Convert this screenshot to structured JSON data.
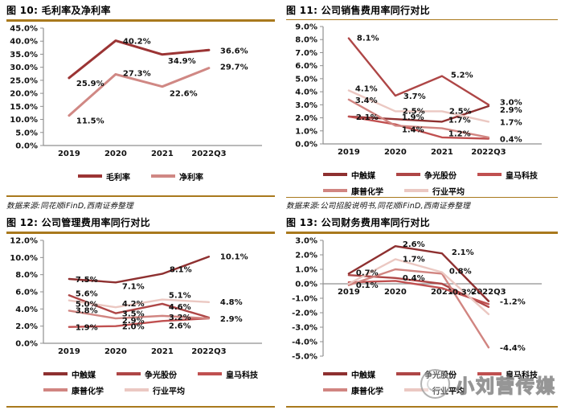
{
  "page": {
    "accent_color": "#A9791D",
    "background": "#ffffff",
    "text_color": "#000000"
  },
  "watermark": {
    "text": "小刘营传媒",
    "icon": "wechat-logo-sketch"
  },
  "figures": [
    {
      "title": "图 10: 毛利率及净利率",
      "source": "数据来源:同花顺iFinD,西南证券整理"
    },
    {
      "title": "图 11: 公司销售费用率同行对比",
      "source": "数据来源:公司招股说明书,同花顺iFinD,西南证券整理"
    },
    {
      "title": "图 12: 公司管理费用率同行对比",
      "source": ""
    },
    {
      "title": "图 13: 公司财务费用率同行对比",
      "source": ""
    }
  ],
  "chart_data": [
    {
      "id": "fig10",
      "type": "line",
      "title": "毛利率及净利率",
      "categories": [
        "2019",
        "2020",
        "2021",
        "2022Q3"
      ],
      "ylim": [
        0,
        45
      ],
      "yticks": [
        0,
        5,
        10,
        15,
        20,
        25,
        30,
        35,
        40,
        45
      ],
      "grid": false,
      "legend_position": "bottom-center",
      "series": [
        {
          "name": "毛利率",
          "color": "#9B3434",
          "width": 3,
          "values": [
            25.9,
            40.2,
            34.9,
            36.6
          ],
          "labels": [
            {
              "t": "25.9%",
              "dx": 9,
              "dy": 10
            },
            {
              "t": "40.2%",
              "dx": 9,
              "dy": 4
            },
            {
              "t": "34.9%",
              "dx": 7,
              "dy": 11
            },
            {
              "t": "36.6%",
              "dx": 14,
              "dy": 4
            }
          ]
        },
        {
          "name": "净利率",
          "color": "#D08884",
          "width": 3,
          "values": [
            11.5,
            27.3,
            22.6,
            29.7
          ],
          "labels": [
            {
              "t": "11.5%",
              "dx": 9,
              "dy": 10
            },
            {
              "t": "27.3%",
              "dx": 9,
              "dy": 2
            },
            {
              "t": "22.6%",
              "dx": 9,
              "dy": 12
            },
            {
              "t": "29.7%",
              "dx": 14,
              "dy": 2
            }
          ]
        }
      ]
    },
    {
      "id": "fig11",
      "type": "line",
      "title": "公司销售费用率同行对比",
      "categories": [
        "2019",
        "2020",
        "2021",
        "2022Q3"
      ],
      "ylim": [
        0,
        9
      ],
      "yticks": [
        0,
        1,
        2,
        3,
        4,
        5,
        6,
        7,
        8,
        9
      ],
      "grid": false,
      "legend_position": "bottom-left",
      "series": [
        {
          "name": "中触媒",
          "color": "#8E3030",
          "width": 2.4,
          "values": [
            2.1,
            1.9,
            1.7,
            2.9
          ],
          "labels": [
            {
              "t": "2.1%",
              "dx": 9,
              "dy": 4
            },
            {
              "t": "1.9%",
              "dx": 8,
              "dy": 1
            },
            {
              "t": "1.7%",
              "dx": 8,
              "dy": 1
            },
            {
              "t": "2.9%",
              "dx": 14,
              "dy": 8
            }
          ]
        },
        {
          "name": "争光股份",
          "color": "#AE4646",
          "width": 2.4,
          "values": [
            8.1,
            3.7,
            5.2,
            3.0
          ],
          "labels": [
            {
              "t": "8.1%",
              "dx": 10,
              "dy": 3
            },
            {
              "t": "3.7%",
              "dx": 10,
              "dy": 4
            },
            {
              "t": "5.2%",
              "dx": 11,
              "dy": 2
            },
            {
              "t": "3.0%",
              "dx": 14,
              "dy": 0
            }
          ]
        },
        {
          "name": "皇马科技",
          "color": "#C05050",
          "width": 2.4,
          "values": [
            2.1,
            1.5,
            0.5,
            0.4
          ],
          "labels": [
            null,
            null,
            null,
            {
              "t": "0.4%",
              "dx": 14,
              "dy": 4
            }
          ]
        },
        {
          "name": "康普化学",
          "color": "#D18581",
          "width": 2.4,
          "values": [
            3.4,
            1.4,
            1.2,
            0.5
          ],
          "labels": [
            {
              "t": "3.4%",
              "dx": 8,
              "dy": 4
            },
            {
              "t": "1.4%",
              "dx": 8,
              "dy": 8
            },
            {
              "t": "1.2%",
              "dx": 8,
              "dy": 10
            },
            null
          ]
        },
        {
          "name": "行业平均",
          "color": "#EBC8C2",
          "width": 2.4,
          "values": [
            4.1,
            2.5,
            2.5,
            1.7
          ],
          "labels": [
            {
              "t": "4.1%",
              "dx": 8,
              "dy": 1
            },
            {
              "t": "2.5%",
              "dx": 9,
              "dy": 3
            },
            {
              "t": "2.5%",
              "dx": 9,
              "dy": 3
            },
            {
              "t": "1.7%",
              "dx": 14,
              "dy": 4
            }
          ]
        }
      ]
    },
    {
      "id": "fig12",
      "type": "line",
      "title": "公司管理费用率同行对比",
      "categories": [
        "2019",
        "2020",
        "2021",
        "2022Q3"
      ],
      "ylim": [
        0,
        12
      ],
      "yticks": [
        0,
        2,
        4,
        6,
        8,
        10,
        12
      ],
      "grid": false,
      "legend_position": "bottom-left",
      "series": [
        {
          "name": "中触媒",
          "color": "#8E3030",
          "width": 2.4,
          "values": [
            7.5,
            7.1,
            8.1,
            10.1
          ],
          "labels": [
            {
              "t": "7.5%",
              "dx": 8,
              "dy": 4
            },
            {
              "t": "7.1%",
              "dx": 8,
              "dy": 8
            },
            {
              "t": "8.1%",
              "dx": 9,
              "dy": -2
            },
            {
              "t": "10.1%",
              "dx": 14,
              "dy": 3
            }
          ]
        },
        {
          "name": "争光股份",
          "color": "#AE4646",
          "width": 2.4,
          "values": [
            5.6,
            3.5,
            4.6,
            3.0
          ],
          "labels": [
            {
              "t": "5.6%",
              "dx": 8,
              "dy": 1
            },
            {
              "t": "3.5%",
              "dx": 8,
              "dy": 4
            },
            {
              "t": "4.6%",
              "dx": 8,
              "dy": 7
            },
            null
          ]
        },
        {
          "name": "皇马科技",
          "color": "#C05050",
          "width": 2.4,
          "values": [
            1.9,
            2.0,
            2.6,
            2.9
          ],
          "labels": [
            {
              "t": "1.9%",
              "dx": 8,
              "dy": 4
            },
            {
              "t": "2.0%",
              "dx": 8,
              "dy": 4
            },
            {
              "t": "2.6%",
              "dx": 8,
              "dy": 9
            },
            {
              "t": "2.9%",
              "dx": 14,
              "dy": 4
            }
          ]
        },
        {
          "name": "康普化学",
          "color": "#D18581",
          "width": 2.4,
          "values": [
            3.8,
            2.9,
            3.2,
            2.9
          ],
          "labels": [
            {
              "t": "3.8%",
              "dx": 8,
              "dy": 3
            },
            {
              "t": "2.9%",
              "dx": 8,
              "dy": 6
            },
            {
              "t": "3.2%",
              "dx": 8,
              "dy": 5
            },
            null
          ]
        },
        {
          "name": "行业平均",
          "color": "#EBC8C2",
          "width": 2.4,
          "values": [
            5.0,
            4.2,
            5.1,
            4.8
          ],
          "labels": [
            {
              "t": "5.0%",
              "dx": 8,
              "dy": 8
            },
            {
              "t": "4.2%",
              "dx": 8,
              "dy": -1
            },
            {
              "t": "5.1%",
              "dx": 8,
              "dy": -2
            },
            {
              "t": "4.8%",
              "dx": 14,
              "dy": 3
            }
          ]
        }
      ]
    },
    {
      "id": "fig13",
      "type": "line",
      "title": "公司财务费用率同行对比",
      "categories": [
        "2019",
        "2020",
        "2021",
        "2022Q3"
      ],
      "ylim": [
        -5,
        3
      ],
      "yticks": [
        -5,
        -4,
        -3,
        -2,
        -1,
        0,
        1,
        2,
        3
      ],
      "grid": false,
      "legend_position": "bottom-left",
      "series": [
        {
          "name": "中触媒",
          "color": "#8E3030",
          "width": 2.4,
          "values": [
            0.7,
            2.6,
            2.1,
            -1.2
          ],
          "labels": [
            {
              "t": "0.7%",
              "dx": 9,
              "dy": 2
            },
            {
              "t": "2.6%",
              "dx": 9,
              "dy": 1
            },
            {
              "t": "2.1%",
              "dx": 12,
              "dy": 2
            },
            {
              "t": "-1.2%",
              "dx": 14,
              "dy": 4,
              "b": true
            }
          ]
        },
        {
          "name": "争光股份",
          "color": "#AE4646",
          "width": 2.4,
          "values": [
            0.6,
            0.4,
            0.0,
            -1.6
          ],
          "labels": [
            null,
            {
              "t": "0.4%",
              "dx": 9,
              "dy": 3
            },
            null,
            null
          ]
        },
        {
          "name": "皇马科技",
          "color": "#C05050",
          "width": 2.4,
          "values": [
            0.1,
            0.2,
            -0.3,
            -1.4
          ],
          "labels": [
            {
              "t": "0.1%",
              "dx": 9,
              "dy": 7
            },
            null,
            {
              "t": "-0.3%",
              "dx": 9,
              "dy": 8
            },
            null
          ]
        },
        {
          "name": "康普化学",
          "color": "#D18581",
          "width": 2.4,
          "values": [
            -0.1,
            1.0,
            0.7,
            -4.4
          ],
          "labels": [
            null,
            null,
            null,
            {
              "t": "-4.4%",
              "dx": 14,
              "dy": 4
            }
          ]
        },
        {
          "name": "行业平均",
          "color": "#EBC8C2",
          "width": 2.4,
          "values": [
            0.0,
            1.7,
            0.8,
            -2.1
          ],
          "labels": [
            null,
            {
              "t": "1.7%",
              "dx": 9,
              "dy": 3
            },
            {
              "t": "0.8%",
              "dx": 9,
              "dy": 2
            },
            null
          ]
        }
      ]
    }
  ]
}
